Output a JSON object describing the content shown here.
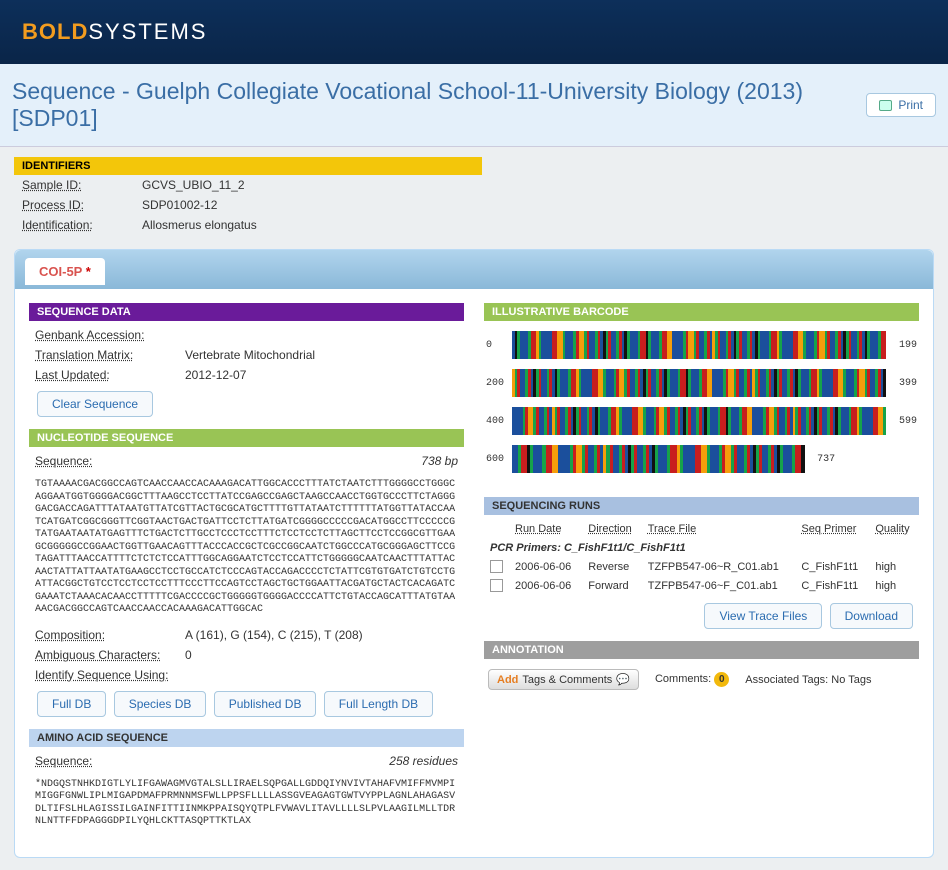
{
  "logo": {
    "bold": "BOLD",
    "sys": "SYSTEMS"
  },
  "page_title": "Sequence - Guelph Collegiate Vocational School-11-University Biology (2013) [SDP01]",
  "print_label": "Print",
  "identifiers": {
    "header": "IDENTIFIERS",
    "rows": [
      {
        "label": "Sample ID:",
        "value": "GCVS_UBIO_11_2"
      },
      {
        "label": "Process ID:",
        "value": "SDP01002-12"
      },
      {
        "label": "Identification:",
        "value": "Allosmerus elongatus"
      }
    ]
  },
  "tab": {
    "label": "COI-5P",
    "marker": "*"
  },
  "sequence_data": {
    "header": "SEQUENCE DATA",
    "genbank": {
      "label": "Genbank Accession:",
      "value": ""
    },
    "matrix": {
      "label": "Translation Matrix:",
      "value": "Vertebrate Mitochondrial"
    },
    "updated": {
      "label": "Last Updated:",
      "value": "2012-12-07"
    },
    "clear_btn": "Clear Sequence"
  },
  "nucleotide": {
    "header": "NUCLEOTIDE SEQUENCE",
    "seq_label": "Sequence:",
    "length": "738 bp",
    "sequence": "TGTAAAACGACGGCCAGTCAACCAACCACAAAGACATTGGCACCCTTTATCTAATCTTTGGGGCCTGGGCAGGAATGGTGGGGACGGCTTTAAGCCTCCTTATCCGAGCCGAGCTAAGCCAACCTGGTGCCCTTCTAGGGGACGACCAGATTTATAATGTTATCGTTACTGCGCATGCTTTTGTTATAATCTTTTTTATGGTTATACCAATCATGATCGGCGGGTTCGGTAACTGACTGATTCCTCTTATGATCGGGGCCCCCGACATGGCCTTCCCCCGTATGAATAATATGAGTTTCTGACTCTTGCCTCCCTCCTTTCTCCTCCTCTTAGCTTCCTCCGGCGTTGAAGCGGGGGCCGGAACTGGTTGAACAGTTTACCCACCGCTCGCCGGCAATCTGGCCCATGCGGGAGCTTCCGTAGATTTAACCATTTTCTCTCTCCATTTGGCAGGAATCTCCTCCATTCTGGGGGCAATCAACTTTATTACAACTATTATTAATATGAAGCCTCCTGCCATCTCCCAGTACCAGACCCCTCTATTCGTGTGATCTGTCCTGATTACGGCTGTCCTCCTCCTCCTTTCCCTTCCAGTCCTAGCTGCTGGAATTACGATGCTACTCACAGATCGAAATCTAAACACAACCTTTTTCGACCCCGCTGGGGGTGGGGACCCCATTCTGTACCAGCATTTATGTAAAACGACGGCCAGTCAACCAACCACAAAGACATTGGCAC",
    "composition": {
      "label": "Composition:",
      "value": "A (161), G (154), C (215), T (208)"
    },
    "ambiguous": {
      "label": "Ambiguous Characters:",
      "value": "0"
    },
    "identify_label": "Identify Sequence Using:",
    "buttons": [
      "Full DB",
      "Species DB",
      "Published DB",
      "Full Length DB"
    ]
  },
  "amino": {
    "header": "AMINO ACID SEQUENCE",
    "seq_label": "Sequence:",
    "length": "258 residues",
    "sequence": "*NDGQSTNHKDIGTLYLIFGAWAGMVGTALSLLIRAELSQPGALLGDDQIYNVIVTAHAFVMIFFMVMPIMIGGFGNWLIPLMIGAPDMAFPRMNNMSFWLLPPSFLLLLASSGVEAGAGTGWTVYPPLAGNLAHAGASVDLTIFSLHLAGISSILGAINFITTIINMKPPAISQYQTPLFVWAVLITAVLLLLSLPVLAAGILMLLTDRNLNTTFFDPAGGGDPILYQHLCKTTASQPTTKTLAX"
  },
  "barcode": {
    "header": "ILLUSTRATIVE BARCODE",
    "rows": [
      {
        "start": "0",
        "end": "199"
      },
      {
        "start": "200",
        "end": "399"
      },
      {
        "start": "400",
        "end": "599"
      },
      {
        "start": "600",
        "end": "737"
      }
    ],
    "colors": [
      "#1b4f9c",
      "#c81e1e",
      "#16a34a",
      "#f59e0b",
      "#1b4f9c",
      "#c81e1e",
      "#1b4f9c",
      "#16a34a",
      "#111",
      "#1b4f9c",
      "#c81e1e",
      "#16a34a",
      "#1b4f9c",
      "#f59e0b",
      "#1b4f9c",
      "#c81e1e",
      "#16a34a",
      "#1b4f9c"
    ]
  },
  "runs": {
    "header": "SEQUENCING RUNS",
    "columns": [
      "Run Date",
      "Direction",
      "Trace File",
      "Seq Primer",
      "Quality"
    ],
    "pcr": "PCR Primers: C_FishF1t1/C_FishF1t1",
    "rows": [
      {
        "date": "2006-06-06",
        "dir": "Reverse",
        "file": "TZFPB547-06~R_C01.ab1",
        "primer": "C_FishF1t1",
        "qual": "high"
      },
      {
        "date": "2006-06-06",
        "dir": "Forward",
        "file": "TZFPB547-06~F_C01.ab1",
        "primer": "C_FishF1t1",
        "qual": "high"
      }
    ],
    "view_btn": "View Trace Files",
    "download_btn": "Download"
  },
  "annotation": {
    "header": "ANNOTATION",
    "add_prefix": "Add",
    "add_rest": "Tags & Comments",
    "comments_label": "Comments:",
    "comments_count": "0",
    "tags_label": "Associated Tags: No Tags"
  }
}
